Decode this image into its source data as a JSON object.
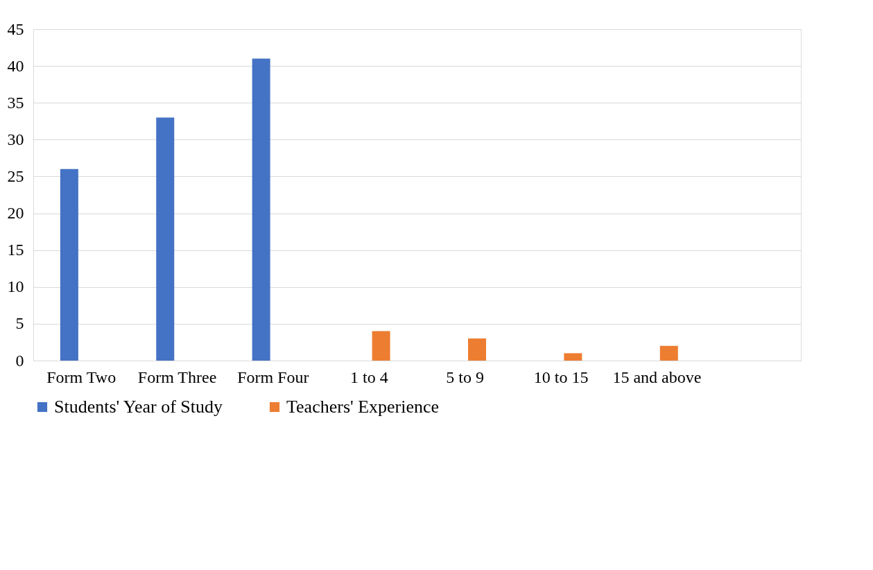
{
  "chart_data": {
    "type": "bar",
    "categories": [
      "Form Two",
      "Form Three",
      "Form Four",
      "1 to 4",
      "5 to 9",
      "10 to 15",
      "15 and above",
      null
    ],
    "series": [
      {
        "name": "Students' Year of Study",
        "color": "#4472c4",
        "values": [
          26,
          33,
          41,
          null,
          null,
          null,
          null,
          null
        ]
      },
      {
        "name": "Teachers' Experience",
        "color": "#ed7d31",
        "values": [
          null,
          null,
          null,
          4,
          3,
          1,
          2,
          null
        ]
      }
    ],
    "ylim": [
      0,
      45
    ],
    "yticks": [
      0,
      5,
      10,
      15,
      20,
      25,
      30,
      35,
      40,
      45
    ],
    "grid": "y",
    "legend": "bottom"
  }
}
